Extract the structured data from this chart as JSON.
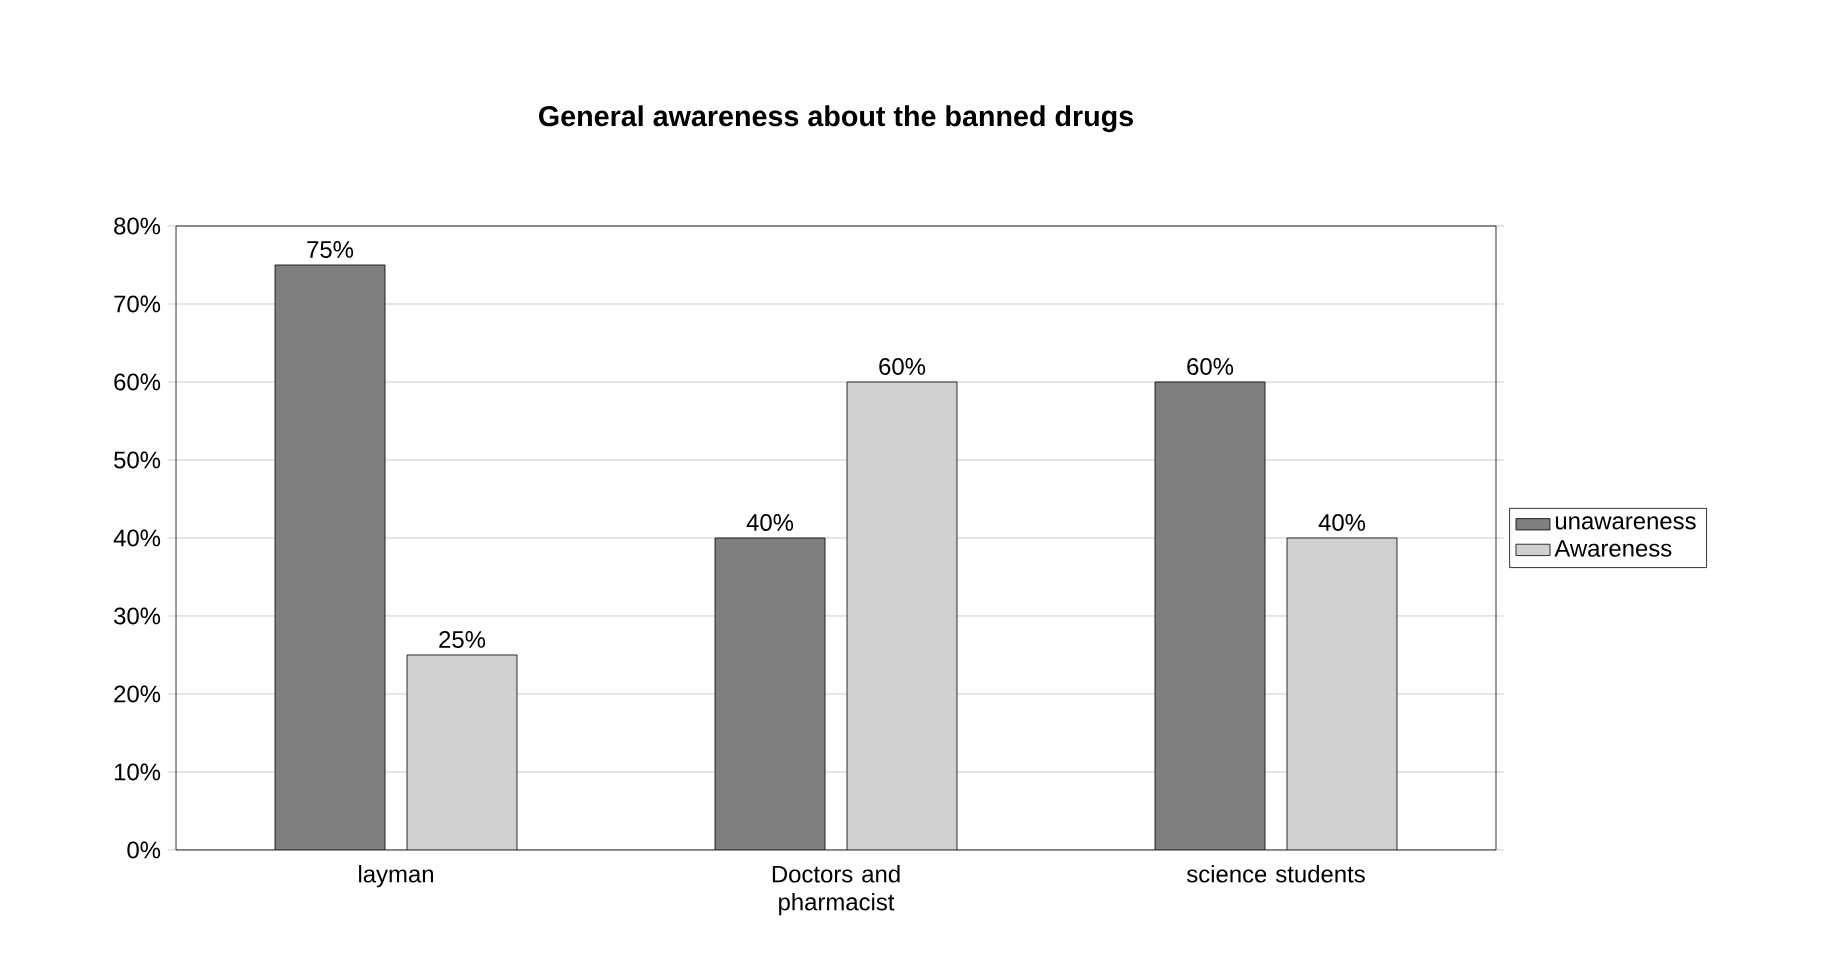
{
  "chart_data": {
    "type": "bar",
    "title": "General awareness about the banned drugs",
    "categories": [
      "layman",
      "Doctors and pharmacist",
      "science students"
    ],
    "series": [
      {
        "name": "unawareness",
        "color": "#7f7f7f",
        "values": [
          75,
          40,
          60
        ],
        "value_labels": [
          "75%",
          "40%",
          "60%"
        ]
      },
      {
        "name": "Awareness",
        "color": "#d0d0d0",
        "values": [
          25,
          60,
          40
        ],
        "value_labels": [
          "25%",
          "60%",
          "40%"
        ]
      }
    ],
    "ylim": [
      0,
      80
    ],
    "yticks": [
      {
        "value": 0,
        "label": "0%"
      },
      {
        "value": 10,
        "label": "10%"
      },
      {
        "value": 20,
        "label": "20%"
      },
      {
        "value": 30,
        "label": "30%"
      },
      {
        "value": 40,
        "label": "40%"
      },
      {
        "value": 50,
        "label": "50%"
      },
      {
        "value": 60,
        "label": "60%"
      },
      {
        "value": 70,
        "label": "70%"
      },
      {
        "value": 80,
        "label": "80%"
      }
    ],
    "grid": "y",
    "legend": "right"
  }
}
